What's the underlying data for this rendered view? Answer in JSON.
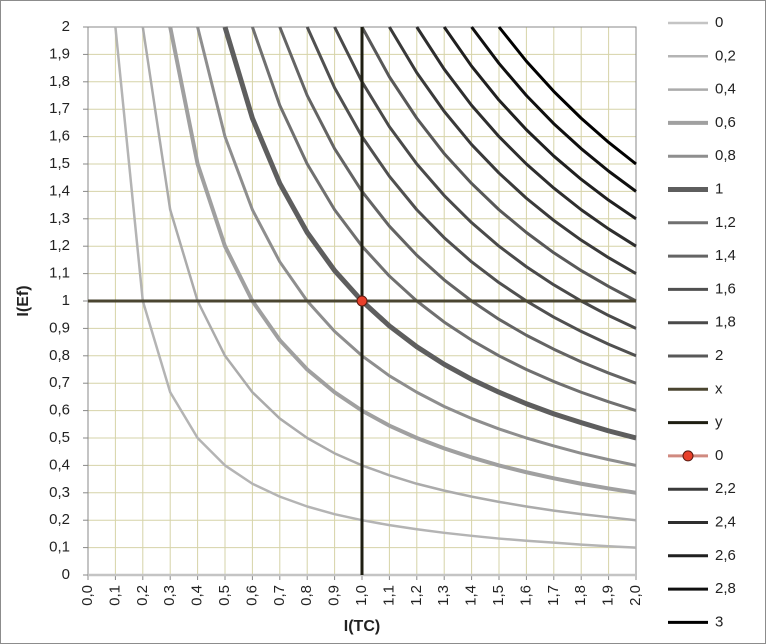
{
  "chart_data": {
    "type": "line",
    "x_label": "I(TC)",
    "y_label": "I(Ef)",
    "x": [
      0,
      0.1,
      0.2,
      0.3,
      0.4,
      0.5,
      0.6,
      0.7,
      0.8,
      0.9,
      1,
      1.1,
      1.2,
      1.3,
      1.4,
      1.5,
      1.6,
      1.7,
      1.8,
      1.9,
      2
    ],
    "xlim": [
      0,
      2
    ],
    "ylim": [
      0,
      2
    ],
    "grid": true,
    "legend": "right",
    "xticks": [
      {
        "value": 0,
        "label": "0,0"
      },
      {
        "value": 0.1,
        "label": "0,1"
      },
      {
        "value": 0.2,
        "label": "0,2"
      },
      {
        "value": 0.3,
        "label": "0,3"
      },
      {
        "value": 0.4,
        "label": "0,4"
      },
      {
        "value": 0.5,
        "label": "0,5"
      },
      {
        "value": 0.6,
        "label": "0,6"
      },
      {
        "value": 0.7,
        "label": "0,7"
      },
      {
        "value": 0.8,
        "label": "0,8"
      },
      {
        "value": 0.9,
        "label": "0,9"
      },
      {
        "value": 1,
        "label": "1,0"
      },
      {
        "value": 1.1,
        "label": "1,1"
      },
      {
        "value": 1.2,
        "label": "1,2"
      },
      {
        "value": 1.3,
        "label": "1,3"
      },
      {
        "value": 1.4,
        "label": "1,4"
      },
      {
        "value": 1.5,
        "label": "1,5"
      },
      {
        "value": 1.6,
        "label": "1,6"
      },
      {
        "value": 1.7,
        "label": "1,7"
      },
      {
        "value": 1.8,
        "label": "1,8"
      },
      {
        "value": 1.9,
        "label": "1,9"
      },
      {
        "value": 2,
        "label": "2,0"
      }
    ],
    "yticks": [
      0,
      {
        "value": 0.1,
        "label": "0,1"
      },
      {
        "value": 0.2,
        "label": "0,2"
      },
      {
        "value": 0.3,
        "label": "0,3"
      },
      {
        "value": 0.4,
        "label": "0,4"
      },
      {
        "value": 0.5,
        "label": "0,5"
      },
      {
        "value": 0.6,
        "label": "0,6"
      },
      {
        "value": 0.7,
        "label": "0,7"
      },
      {
        "value": 0.8,
        "label": "0,8"
      },
      {
        "value": 0.9,
        "label": "0,9"
      },
      1,
      {
        "value": 1.1,
        "label": "1,1"
      },
      {
        "value": 1.2,
        "label": "1,2"
      },
      {
        "value": 1.3,
        "label": "1,3"
      },
      {
        "value": 1.4,
        "label": "1,4"
      },
      {
        "value": 1.5,
        "label": "1,5"
      },
      {
        "value": 1.6,
        "label": "1,6"
      },
      {
        "value": 1.7,
        "label": "1,7"
      },
      {
        "value": 1.8,
        "label": "1,8"
      },
      {
        "value": 1.9,
        "label": "1,9"
      },
      2
    ],
    "series": [
      {
        "name": "0",
        "color": "#c4c4c4",
        "width": 2.5,
        "values": [
          0,
          0,
          0,
          0,
          0,
          0,
          0,
          0,
          0,
          0,
          0,
          0,
          0,
          0,
          0,
          0,
          0,
          0,
          0,
          0,
          0
        ]
      },
      {
        "name": "0,2",
        "color": "#b4b4b4",
        "width": 2.5,
        "values": [
          null,
          2,
          1,
          0.667,
          0.5,
          0.4,
          0.333,
          0.286,
          0.25,
          0.222,
          0.2,
          0.182,
          0.167,
          0.154,
          0.143,
          0.133,
          0.125,
          0.118,
          0.111,
          0.105,
          0.1
        ]
      },
      {
        "name": "0,4",
        "color": "#ababab",
        "width": 2.5,
        "values": [
          null,
          null,
          2,
          1.333,
          1,
          0.8,
          0.667,
          0.571,
          0.5,
          0.444,
          0.4,
          0.364,
          0.333,
          0.308,
          0.286,
          0.267,
          0.25,
          0.235,
          0.222,
          0.211,
          0.2
        ]
      },
      {
        "name": "0,6",
        "color": "#a0a0a0",
        "width": 4,
        "values": [
          null,
          null,
          null,
          2,
          1.5,
          1.2,
          1,
          0.857,
          0.75,
          0.667,
          0.6,
          0.545,
          0.5,
          0.462,
          0.429,
          0.4,
          0.375,
          0.353,
          0.333,
          0.316,
          0.3
        ]
      },
      {
        "name": "0,8",
        "color": "#8e8e8e",
        "width": 3,
        "values": [
          null,
          null,
          null,
          null,
          2,
          1.6,
          1.333,
          1.143,
          1,
          0.889,
          0.8,
          0.727,
          0.667,
          0.615,
          0.571,
          0.533,
          0.5,
          0.471,
          0.444,
          0.421,
          0.4
        ]
      },
      {
        "name": "1",
        "color": "#5e5e5e",
        "width": 5,
        "values": [
          null,
          null,
          null,
          null,
          null,
          2,
          1.667,
          1.429,
          1.25,
          1.111,
          1,
          0.909,
          0.833,
          0.769,
          0.714,
          0.667,
          0.625,
          0.588,
          0.556,
          0.526,
          0.5
        ]
      },
      {
        "name": "1,2",
        "color": "#707070",
        "width": 3,
        "values": [
          null,
          null,
          null,
          null,
          null,
          null,
          2,
          1.714,
          1.5,
          1.333,
          1.2,
          1.091,
          1,
          0.923,
          0.857,
          0.8,
          0.75,
          0.706,
          0.667,
          0.632,
          0.6
        ]
      },
      {
        "name": "1,4",
        "color": "#646464",
        "width": 3,
        "values": [
          null,
          null,
          null,
          null,
          null,
          null,
          null,
          2,
          1.75,
          1.556,
          1.4,
          1.273,
          1.167,
          1.077,
          1,
          0.933,
          0.875,
          0.824,
          0.778,
          0.737,
          0.7
        ]
      },
      {
        "name": "1,6",
        "color": "#505050",
        "width": 3,
        "values": [
          null,
          null,
          null,
          null,
          null,
          null,
          null,
          null,
          2,
          1.778,
          1.6,
          1.455,
          1.333,
          1.231,
          1.143,
          1.067,
          1,
          0.941,
          0.889,
          0.842,
          0.8
        ]
      },
      {
        "name": "1,8",
        "color": "#4a4a4a",
        "width": 3,
        "values": [
          null,
          null,
          null,
          null,
          null,
          null,
          null,
          null,
          null,
          2,
          1.8,
          1.636,
          1.5,
          1.385,
          1.286,
          1.2,
          1.125,
          1.059,
          1,
          0.947,
          0.9
        ]
      },
      {
        "name": "2",
        "color": "#585858",
        "width": 3,
        "values": [
          null,
          null,
          null,
          null,
          null,
          null,
          null,
          null,
          null,
          null,
          2,
          1.818,
          1.667,
          1.538,
          1.429,
          1.333,
          1.25,
          1.176,
          1.111,
          1.053,
          1
        ]
      },
      {
        "name": "x",
        "color": "#4a4530",
        "width": 3,
        "x": [
          0,
          2
        ],
        "values": [
          1,
          1
        ]
      },
      {
        "name": "y",
        "color": "#1e1e12",
        "width": 3,
        "x": [
          1,
          1
        ],
        "values": [
          0,
          2
        ]
      },
      {
        "name": "0",
        "color": "#d08a80",
        "marker_color": "#e8402a",
        "width": 3,
        "marker": true,
        "x": [
          1
        ],
        "values": [
          1
        ]
      },
      {
        "name": "2,2",
        "color": "#3a3a3a",
        "width": 3,
        "values": [
          null,
          null,
          null,
          null,
          null,
          null,
          null,
          null,
          null,
          null,
          null,
          2,
          1.833,
          1.692,
          1.571,
          1.467,
          1.375,
          1.294,
          1.222,
          1.158,
          1.1
        ]
      },
      {
        "name": "2,4",
        "color": "#2e2e2e",
        "width": 3,
        "values": [
          null,
          null,
          null,
          null,
          null,
          null,
          null,
          null,
          null,
          null,
          null,
          null,
          2,
          1.846,
          1.714,
          1.6,
          1.5,
          1.412,
          1.333,
          1.263,
          1.2
        ]
      },
      {
        "name": "2,6",
        "color": "#202020",
        "width": 3,
        "values": [
          null,
          null,
          null,
          null,
          null,
          null,
          null,
          null,
          null,
          null,
          null,
          null,
          null,
          2,
          1.857,
          1.733,
          1.625,
          1.529,
          1.444,
          1.368,
          1.3
        ]
      },
      {
        "name": "2,8",
        "color": "#101010",
        "width": 3,
        "values": [
          null,
          null,
          null,
          null,
          null,
          null,
          null,
          null,
          null,
          null,
          null,
          null,
          null,
          null,
          2,
          1.867,
          1.75,
          1.647,
          1.556,
          1.474,
          1.4
        ]
      },
      {
        "name": "3",
        "color": "#000000",
        "width": 3,
        "values": [
          null,
          null,
          null,
          null,
          null,
          null,
          null,
          null,
          null,
          null,
          null,
          null,
          null,
          null,
          null,
          2,
          1.875,
          1.765,
          1.667,
          1.579,
          1.5
        ]
      }
    ]
  }
}
